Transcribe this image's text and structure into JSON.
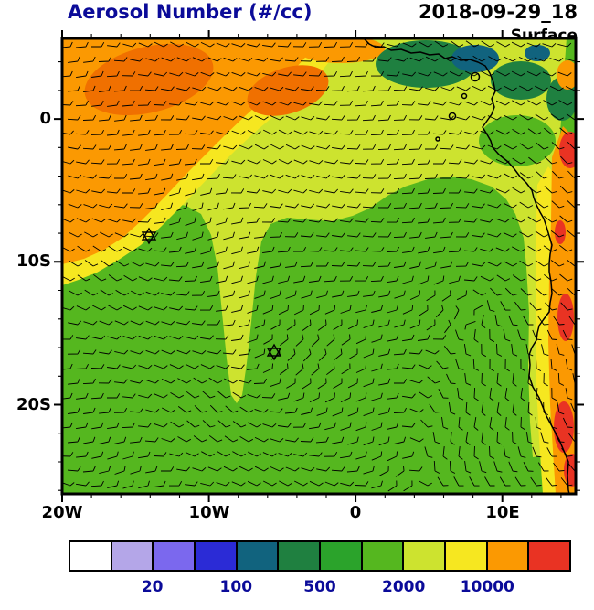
{
  "header": {
    "title": "Aerosol Number (#/cc)",
    "datetime": "2018-09-29_18",
    "level": "Surface"
  },
  "axes": {
    "x_ticks": [
      "20W",
      "10W",
      "0",
      "10E"
    ],
    "y_ticks": [
      "0",
      "10S",
      "20S"
    ]
  },
  "colorbar": {
    "tick_labels": [
      "20",
      "100",
      "500",
      "2000",
      "10000"
    ],
    "colors": [
      "#ffffff",
      "#b4a6e8",
      "#7b68ee",
      "#2b2bd6",
      "#11637e",
      "#1f8040",
      "#2ba32b",
      "#55b71f",
      "#cde32f",
      "#f6e720",
      "#fb9902",
      "#e93323"
    ]
  },
  "colors": {
    "title_navy": "#0b0b99",
    "frame": "#000000"
  },
  "chart_data": {
    "type": "heatmap",
    "title": "Aerosol Number (#/cc)",
    "valid_time": "2018-09-29_18",
    "level": "Surface",
    "x_tick_labels": [
      "20W",
      "10W",
      "0",
      "10E"
    ],
    "y_tick_labels": [
      "0",
      "10S",
      "20S"
    ],
    "colorbar_tick_labels": [
      "20",
      "100",
      "500",
      "2000",
      "10000"
    ],
    "legend_position": "bottom",
    "overlays": [
      "wind barbs",
      "African coastline",
      "two star station markers"
    ],
    "qualitative_field": [
      {
        "region": "northwest quadrant",
        "value": "high, orange ~5000-10000 #/cc"
      },
      {
        "region": "northern band",
        "value": "yellow-green ~2000-5000 #/cc"
      },
      {
        "region": "southern and central ocean",
        "value": "green ~1000-2000 #/cc"
      },
      {
        "region": "Gulf of Guinea coast (top right)",
        "value": "dark green/teal ~500-1000 #/cc"
      },
      {
        "region": "Angola coastal strip (right edge)",
        "value": "orange-red ~5000->10000 #/cc"
      }
    ]
  }
}
